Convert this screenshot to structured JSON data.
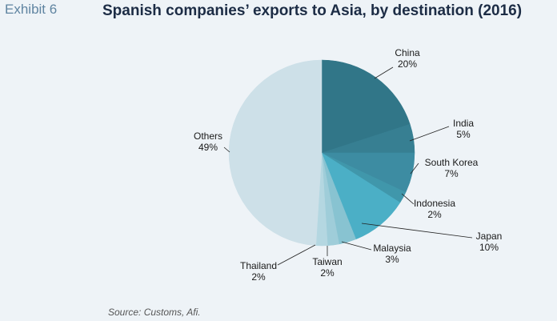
{
  "header": {
    "exhibit": "Exhibit 6",
    "title": "Spanish companies’ exports to Asia, by destination (2016)"
  },
  "footer": {
    "source": "Source: Customs, Afi."
  },
  "chart_data": {
    "type": "pie",
    "title": "Spanish companies’ exports to Asia, by destination (2016)",
    "start": "12 o'clock, clockwise",
    "slices": [
      {
        "label": "China",
        "value": 20,
        "display": "20%",
        "color": "#317688"
      },
      {
        "label": "India",
        "value": 5,
        "display": "5%",
        "color": "#377f92"
      },
      {
        "label": "South Korea",
        "value": 7,
        "display": "7%",
        "color": "#3d8ca2"
      },
      {
        "label": "Indonesia",
        "value": 2,
        "display": "2%",
        "color": "#4097ab"
      },
      {
        "label": "Japan",
        "value": 10,
        "display": "10%",
        "color": "#4bafc6"
      },
      {
        "label": "Malaysia",
        "value": 3,
        "display": "3%",
        "color": "#88c3d1"
      },
      {
        "label": "Taiwan",
        "value": 2,
        "display": "2%",
        "color": "#9fcdd9"
      },
      {
        "label": "Thailand",
        "value": 2,
        "display": "2%",
        "color": "#b4d7e1"
      },
      {
        "label": "Others",
        "value": 49,
        "display": "49%",
        "color": "#cde0e8"
      }
    ]
  }
}
